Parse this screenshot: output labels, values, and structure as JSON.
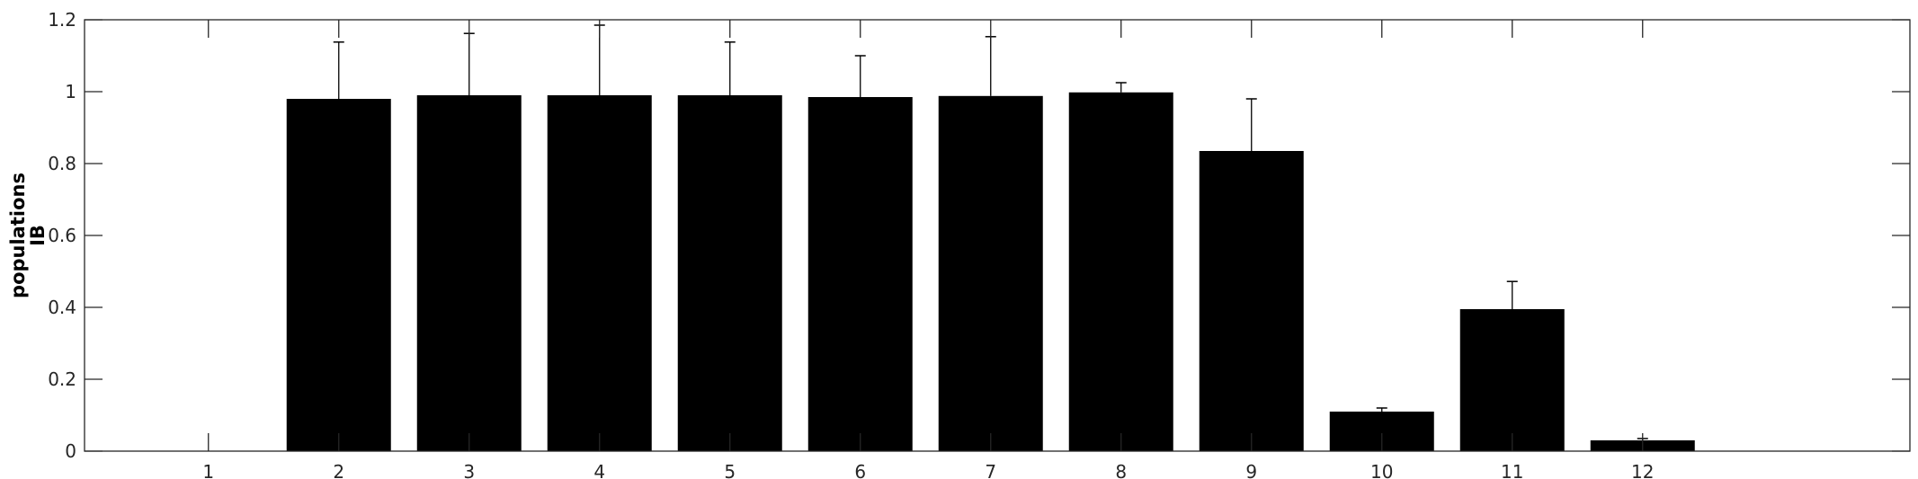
{
  "chart_data": {
    "type": "bar",
    "title": "",
    "xlabel": "",
    "ylabel_lines": [
      "populations",
      "IB"
    ],
    "categories": [
      "1",
      "2",
      "3",
      "4",
      "5",
      "6",
      "7",
      "8",
      "9",
      "10",
      "11",
      "12"
    ],
    "values": [
      0,
      0.98,
      0.99,
      0.99,
      0.99,
      0.985,
      0.988,
      0.998,
      0.835,
      0.11,
      0.395,
      0.03
    ],
    "errors": [
      0,
      0.158,
      0.172,
      0.195,
      0.148,
      0.115,
      0.165,
      0.027,
      0.145,
      0.01,
      0.077,
      0.005
    ],
    "xlim": [
      0.05,
      14.05
    ],
    "ylim": [
      0,
      1.2
    ],
    "yticks": [
      "0",
      "0.2",
      "0.4",
      "0.6",
      "0.8",
      "1",
      "1.2"
    ],
    "grid": false,
    "legend": "none",
    "colors": {
      "bar": "#000000",
      "axis": "#262626",
      "error_bar": "#000000"
    }
  }
}
